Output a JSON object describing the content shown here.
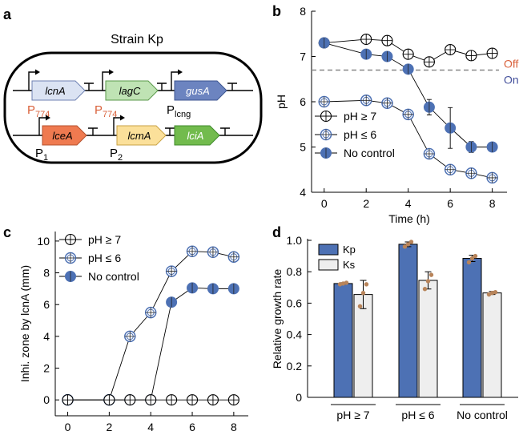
{
  "colors": {
    "blue": "#4d71b4",
    "ks_fill": "#eeeeee",
    "dot": "#b8845a",
    "off": "#d9603a",
    "on": "#45519c",
    "dash": "#888888",
    "promoter_774": "#d9603a"
  },
  "panel_a": {
    "label": "a",
    "title": "Strain Kp",
    "genes": [
      {
        "id": "lcnA1",
        "name": "lcnA",
        "fill": "#dbe3f3",
        "stroke": "#6f82b3"
      },
      {
        "id": "lagC",
        "name": "lagC",
        "fill": "#bfe3b4",
        "stroke": "#5a9a4a"
      },
      {
        "id": "gusA",
        "name": "gusA",
        "fill": "#6c84c0",
        "stroke": "#3c5590"
      },
      {
        "id": "lceA",
        "name": "lceA",
        "fill": "#ef7a50",
        "stroke": "#b4502c"
      },
      {
        "id": "lcmA",
        "name": "lcmA",
        "fill": "#fbe09a",
        "stroke": "#c9a244"
      },
      {
        "id": "lciA",
        "name": "lciA",
        "fill": "#72bb4d",
        "stroke": "#3f8a2a"
      }
    ],
    "promoters": {
      "p774a_main": "P",
      "p774a_sub": "774",
      "p774b_main": "P",
      "p774b_sub": "774",
      "plcng_main": "P",
      "plcng_sub": "lcng",
      "p1_main": "P",
      "p1_sub": "1",
      "p2_main": "P",
      "p2_sub": "2"
    }
  },
  "chart_data": [
    {
      "panel": "b",
      "type": "line",
      "xlabel": "Time (h)",
      "ylabel": "pH",
      "xlim": [
        -0.6,
        8.7
      ],
      "ylim": [
        4,
        8
      ],
      "xticks": [
        "0",
        "2",
        "4",
        "6",
        "8"
      ],
      "yticks": [
        "4",
        "5",
        "6",
        "7",
        "8"
      ],
      "threshold": 6.7,
      "threshold_labels": {
        "off": "Off",
        "on": "On"
      },
      "series": [
        {
          "name": "pH ≥ 7",
          "style": "open-black",
          "x": [
            0,
            2,
            3,
            4,
            5,
            6,
            7,
            8
          ],
          "y": [
            7.3,
            7.38,
            7.35,
            7.05,
            6.88,
            7.15,
            7.02,
            7.07
          ],
          "err": [
            0.08,
            0.08,
            0.08,
            0.08,
            0.08,
            0.08,
            0.08,
            0.08
          ]
        },
        {
          "name": "pH ≤ 6",
          "style": "open-blue",
          "x": [
            0,
            2,
            3,
            4,
            5,
            6,
            7,
            8
          ],
          "y": [
            6.0,
            6.03,
            5.97,
            5.72,
            4.85,
            4.5,
            4.42,
            4.32
          ],
          "err": [
            0.05,
            0.06,
            0.05,
            0.06,
            0.08,
            0.08,
            0.07,
            0.05
          ]
        },
        {
          "name": "No control",
          "style": "filled-blue",
          "x": [
            0,
            2,
            3,
            4,
            5,
            6,
            7,
            8
          ],
          "y": [
            7.3,
            7.05,
            7.0,
            6.72,
            5.88,
            5.42,
            5.0,
            5.0
          ],
          "err": [
            0.08,
            0.08,
            0.08,
            0.1,
            0.17,
            0.45,
            0.12,
            0.08
          ]
        }
      ]
    },
    {
      "panel": "c",
      "type": "line",
      "xlabel": "Time (h)",
      "ylabel": "Inhi. zone by lcnA (mm)",
      "xlim": [
        -0.6,
        8.7
      ],
      "ylim": [
        -1,
        10.6
      ],
      "xticks": [
        "0",
        "2",
        "4",
        "6",
        "8"
      ],
      "yticks": [
        "0",
        "2",
        "4",
        "6",
        "8",
        "10"
      ],
      "series": [
        {
          "name": "pH ≥ 7",
          "style": "open-black",
          "x": [
            0,
            2,
            3,
            4,
            5,
            6,
            7,
            8
          ],
          "y": [
            0,
            0,
            0,
            0,
            0,
            0,
            0,
            0
          ],
          "err": [
            0,
            0,
            0,
            0,
            0,
            0,
            0,
            0
          ]
        },
        {
          "name": "pH ≤ 6",
          "style": "open-blue",
          "x": [
            0,
            2,
            3,
            4,
            5,
            6,
            7,
            8
          ],
          "y": [
            0,
            0,
            4.0,
            5.5,
            8.1,
            9.35,
            9.3,
            9.0
          ],
          "err": [
            0,
            0,
            0.15,
            0.25,
            0.25,
            0.25,
            0.25,
            0.3
          ]
        },
        {
          "name": "No control",
          "style": "filled-blue",
          "x": [
            0,
            2,
            3,
            4,
            5,
            6,
            7,
            8
          ],
          "y": [
            0,
            0,
            0,
            0,
            6.15,
            7.05,
            7.0,
            7.0
          ],
          "err": [
            0,
            0,
            0,
            0,
            0.25,
            0.2,
            0.2,
            0.2
          ]
        }
      ]
    },
    {
      "panel": "d",
      "type": "bar",
      "ylabel": "Relative growth rate",
      "ylim": [
        0,
        1.0
      ],
      "yticks": [
        "0",
        "0.2",
        "0.4",
        "0.6",
        "0.8",
        "1.0"
      ],
      "categories": [
        "pH ≥ 7",
        "pH ≤ 6",
        "No control"
      ],
      "series": [
        {
          "name": "Kp",
          "values": [
            0.725,
            0.975,
            0.885
          ],
          "err": [
            0.005,
            0.015,
            0.02
          ],
          "points": [
            [
              0.72,
              0.725,
              0.73
            ],
            [
              0.96,
              0.975,
              0.99
            ],
            [
              0.86,
              0.885,
              0.9
            ]
          ]
        },
        {
          "name": "Ks",
          "values": [
            0.655,
            0.745,
            0.665
          ],
          "err": [
            0.09,
            0.055,
            0.01
          ],
          "points": [
            [
              0.58,
              0.665,
              0.72
            ],
            [
              0.69,
              0.74,
              0.78
            ],
            [
              0.655,
              0.665,
              0.67
            ]
          ]
        }
      ]
    }
  ]
}
